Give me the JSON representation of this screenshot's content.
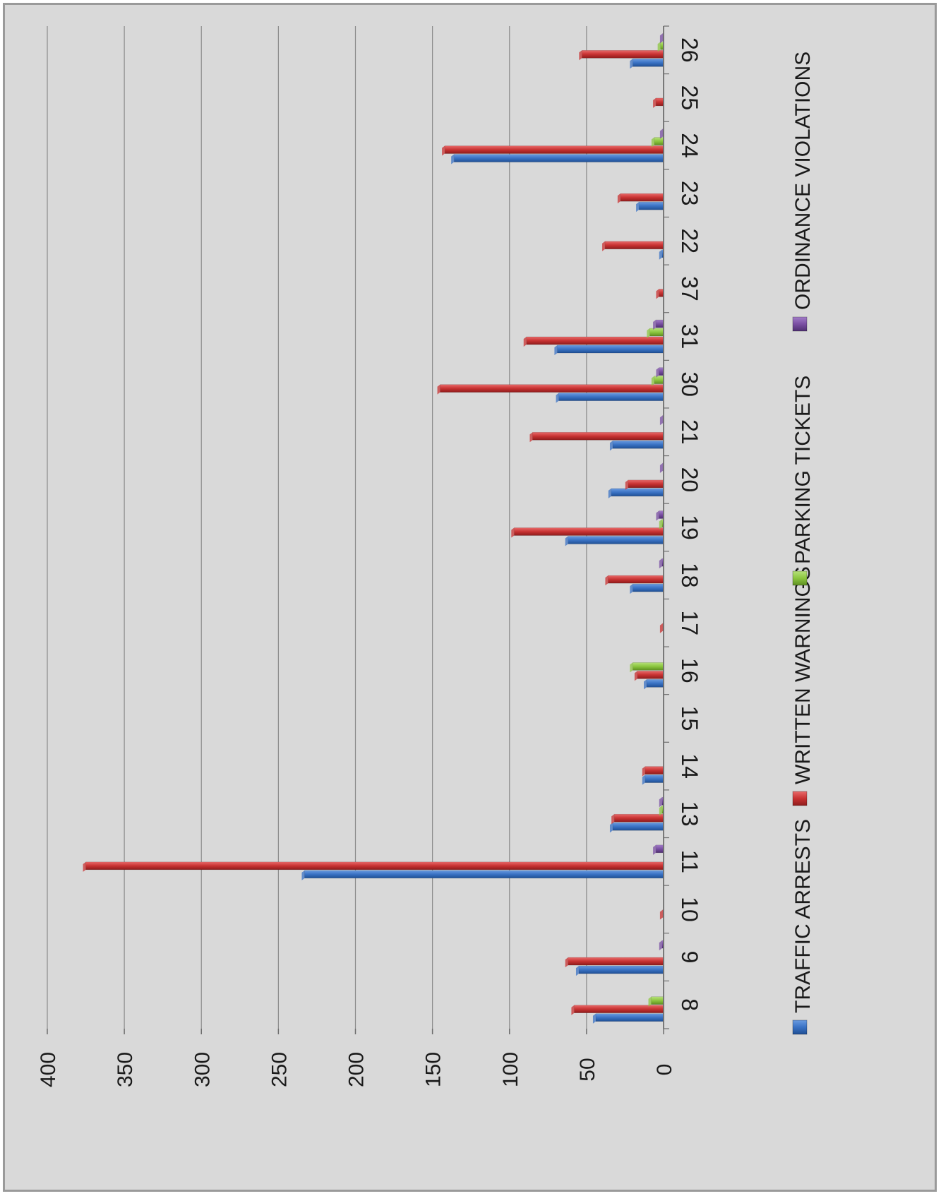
{
  "chart_data": {
    "type": "bar",
    "orientation": "rotated-90-clockwise",
    "categories": [
      "8",
      "9",
      "10",
      "11",
      "13",
      "14",
      "15",
      "16",
      "17",
      "18",
      "19",
      "20",
      "21",
      "30",
      "31",
      "37",
      "22",
      "23",
      "24",
      "25",
      "26"
    ],
    "series": [
      {
        "name": "TRAFFIC ARRESTS",
        "color": "#3a72c4",
        "values": [
          44,
          55,
          0,
          233,
          33,
          12,
          0,
          11,
          0,
          20,
          62,
          34,
          33,
          68,
          69,
          0,
          1,
          16,
          136,
          0,
          20
        ]
      },
      {
        "name": "WRITTEN WARNINGS",
        "color": "#c83232",
        "values": [
          58,
          62,
          0.5,
          375,
          32,
          12,
          0,
          17,
          0.5,
          36,
          97,
          23,
          85,
          145,
          89,
          3,
          38,
          28,
          142,
          5,
          53
        ]
      },
      {
        "name": "PARKING TICKETS",
        "color": "#8cc63f",
        "values": [
          8,
          0,
          0,
          0,
          1,
          0,
          0,
          20,
          0,
          0,
          1,
          0,
          0,
          6,
          9,
          0,
          0,
          0,
          6,
          0,
          2
        ]
      },
      {
        "name": "ORDINANCE VIOLATIONS",
        "color": "#7a4fa3",
        "values": [
          0,
          1,
          0,
          5,
          1,
          0,
          0,
          0,
          0,
          1,
          3,
          0.5,
          0.5,
          3,
          5,
          0,
          0,
          0,
          0.5,
          0,
          0.5
        ]
      }
    ],
    "ylim": [
      0,
      400
    ],
    "yticks": [
      "0",
      "50",
      "100",
      "150",
      "200",
      "250",
      "300",
      "350",
      "400"
    ],
    "grid": true,
    "legend_position": "bottom",
    "title": "",
    "xlabel": "",
    "ylabel": ""
  }
}
